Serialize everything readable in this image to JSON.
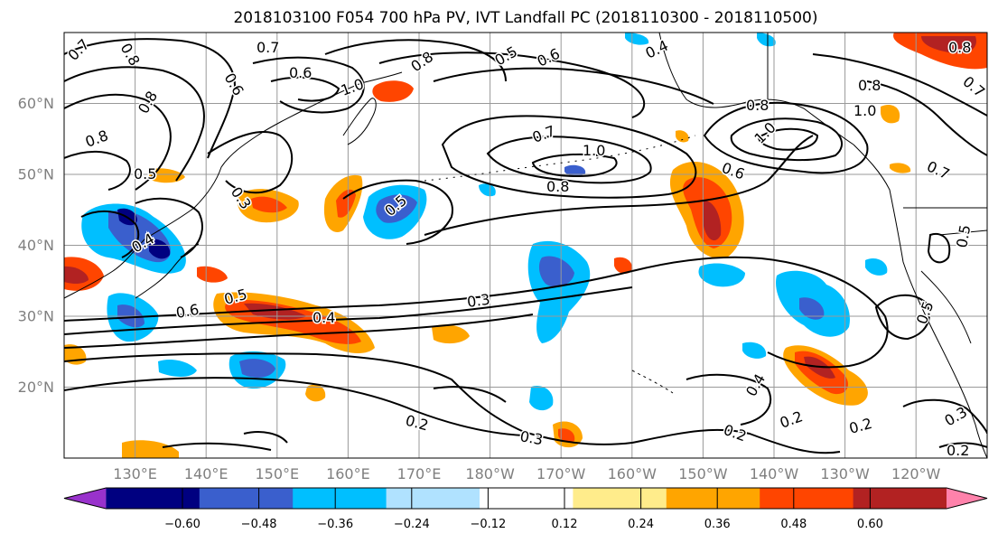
{
  "title": "2018103100 F054 700 hPa PV, IVT Landfall PC (2018110300 - 2018110500)",
  "map": {
    "lat_ticks": [
      "60°N",
      "50°N",
      "40°N",
      "30°N",
      "20°N"
    ],
    "lon_ticks": [
      "130°E",
      "140°E",
      "150°E",
      "160°E",
      "170°E",
      "180°W",
      "170°W",
      "160°W",
      "150°W",
      "140°W",
      "130°W",
      "120°W"
    ],
    "lat_range_deg": [
      10,
      70
    ],
    "lon_range_deg_east": [
      120,
      250
    ],
    "grid": true,
    "projection": "PlateCarree"
  },
  "contours": {
    "field": "700 hPa PV",
    "color": "#000000",
    "labels": [
      {
        "text": "0.7",
        "id": "c1"
      },
      {
        "text": "0.8",
        "id": "c2"
      },
      {
        "text": "0.7",
        "id": "c3"
      },
      {
        "text": "0.6",
        "id": "c4"
      },
      {
        "text": "0.8",
        "id": "c5"
      },
      {
        "text": "0.6",
        "id": "c6"
      },
      {
        "text": "0.5",
        "id": "c7"
      },
      {
        "text": "0.4",
        "id": "c8"
      },
      {
        "text": "1.0",
        "id": "c9"
      },
      {
        "text": "0.8",
        "id": "c10"
      },
      {
        "text": "0.8",
        "id": "c11"
      },
      {
        "text": "0.5",
        "id": "c12"
      },
      {
        "text": "0.3",
        "id": "c13"
      },
      {
        "text": "0.5",
        "id": "c14"
      },
      {
        "text": "0.7",
        "id": "c15"
      },
      {
        "text": "1.0",
        "id": "c16"
      },
      {
        "text": "0.8",
        "id": "c17"
      },
      {
        "text": "0.8",
        "id": "c18"
      },
      {
        "text": "1.0",
        "id": "c19"
      },
      {
        "text": "0.6",
        "id": "c20"
      },
      {
        "text": "1.0",
        "id": "c21"
      },
      {
        "text": "0.7",
        "id": "c22"
      },
      {
        "text": "0.4",
        "id": "c23"
      },
      {
        "text": "0.5",
        "id": "c24"
      },
      {
        "text": "0.6",
        "id": "c25"
      },
      {
        "text": "0.4",
        "id": "c26"
      },
      {
        "text": "0.3",
        "id": "c27"
      },
      {
        "text": "0.2",
        "id": "c28"
      },
      {
        "text": "0.3",
        "id": "c29"
      },
      {
        "text": "0.2",
        "id": "c30"
      },
      {
        "text": "0.4",
        "id": "c31"
      },
      {
        "text": "0.2",
        "id": "c32"
      },
      {
        "text": "0.2",
        "id": "c33"
      },
      {
        "text": "0.3",
        "id": "c34"
      },
      {
        "text": "0.2",
        "id": "c35"
      },
      {
        "text": "0.5",
        "id": "c36"
      },
      {
        "text": "0.8",
        "id": "c37"
      },
      {
        "text": "0.7",
        "id": "c38"
      },
      {
        "text": "0.8",
        "id": "c39"
      },
      {
        "text": "0.5",
        "id": "c40"
      },
      {
        "text": "0.6",
        "id": "c41"
      }
    ]
  },
  "colorbar": {
    "field": "IVT Landfall PC",
    "colors": [
      "#9932cc",
      "#000080",
      "#3a5fcd",
      "#00bfff",
      "#b0e2ff",
      "#ffffff",
      "#ffec8b",
      "#ffa500",
      "#ff4500",
      "#b22222",
      "#ff82ab"
    ],
    "ticks": [
      "−0.60",
      "−0.48",
      "−0.36",
      "−0.24",
      "−0.12",
      "0.12",
      "0.24",
      "0.36",
      "0.48",
      "0.60"
    ],
    "extend": "both"
  },
  "colors": {
    "pos_strong": "#b22222",
    "pos_mid": "#ff4500",
    "pos_low": "#ffa500",
    "pos_faint": "#ffec8b",
    "neg_faint": "#b0e2ff",
    "neg_low": "#00bfff",
    "neg_mid": "#3a5fcd",
    "neg_strong": "#000080",
    "grid": "#999999",
    "coast": "#000000"
  }
}
